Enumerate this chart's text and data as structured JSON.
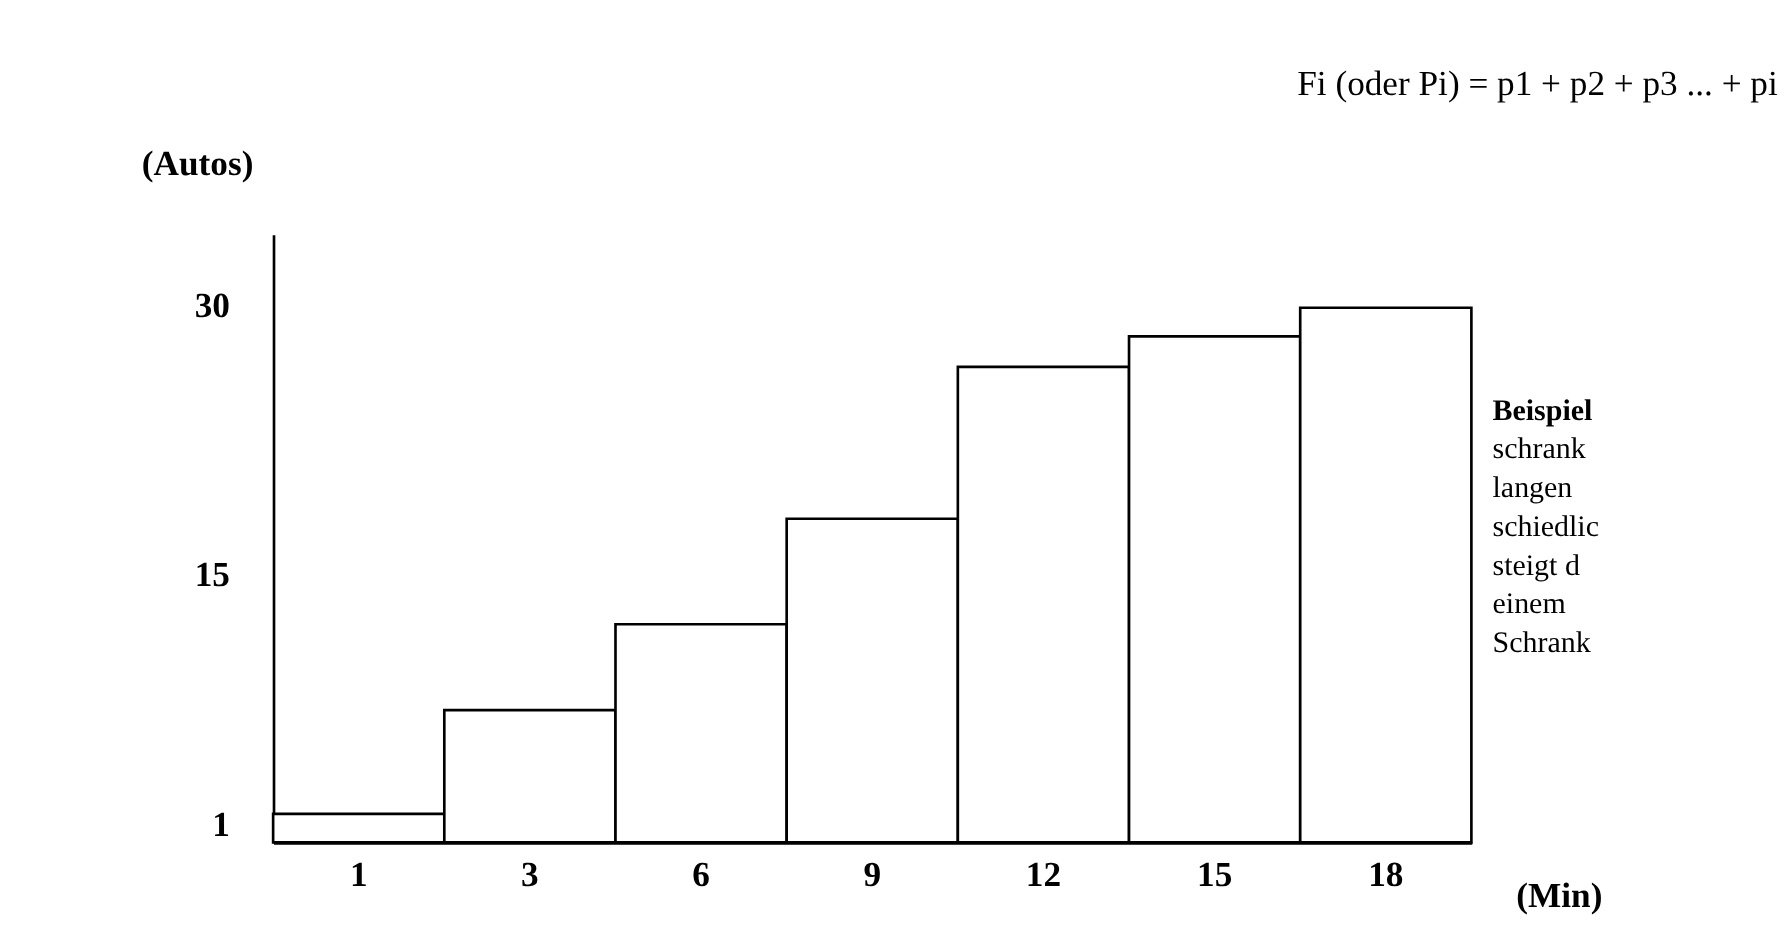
{
  "chart_data": {
    "type": "bar",
    "title": "Fi (oder Pi) = p1 + p2 + p3 ... + pi",
    "xlabel": "(Min)",
    "ylabel": "(Autos)",
    "categories": [
      "1",
      "3",
      "6",
      "9",
      "12",
      "15",
      "18"
    ],
    "values": [
      1.6,
      7.4,
      12.2,
      18.1,
      26.6,
      28.3,
      29.9
    ],
    "color": "#ffffff",
    "ylim": [
      0,
      34
    ],
    "yticks": [
      1,
      15,
      30
    ],
    "grid": false,
    "annotations": [
      "Beispiel",
      "schrank",
      "langen",
      "schiedlic",
      "steigt d",
      "einem",
      "Schrank"
    ]
  }
}
